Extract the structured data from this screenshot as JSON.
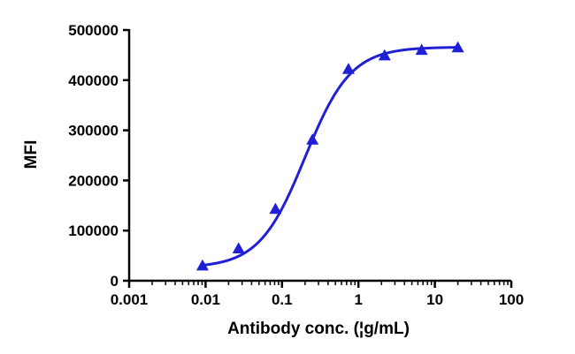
{
  "chart_data": {
    "type": "scatter",
    "title": "",
    "xlabel": "Antibody conc. (¦g/mL)",
    "ylabel": "MFI",
    "x_scale": "log",
    "xlim": [
      0.001,
      100
    ],
    "ylim": [
      0,
      500000
    ],
    "x_ticks": [
      0.001,
      0.01,
      0.1,
      1,
      10,
      100
    ],
    "x_tick_labels": [
      "0.001",
      "0.01",
      "0.1",
      "1",
      "10",
      "100"
    ],
    "y_ticks": [
      0,
      100000,
      200000,
      300000,
      400000,
      500000
    ],
    "y_tick_labels": [
      "0",
      "100000",
      "200000",
      "300000",
      "400000",
      "500000"
    ],
    "grid": false,
    "colors": {
      "series": "#1f1fd6",
      "axis": "#000000"
    },
    "series": [
      {
        "marker": "triangle",
        "points": [
          {
            "x": 0.0091,
            "y": 30000
          },
          {
            "x": 0.027,
            "y": 64000
          },
          {
            "x": 0.082,
            "y": 143000
          },
          {
            "x": 0.25,
            "y": 281000
          },
          {
            "x": 0.74,
            "y": 422000
          },
          {
            "x": 2.2,
            "y": 449000
          },
          {
            "x": 6.7,
            "y": 460000
          },
          {
            "x": 20,
            "y": 465000
          }
        ],
        "fit": {
          "model": "4PL",
          "bottom": 26000,
          "top": 466000,
          "ec50": 0.2,
          "hill": 1.45,
          "x_from": 0.0091,
          "x_to": 20
        }
      }
    ]
  }
}
